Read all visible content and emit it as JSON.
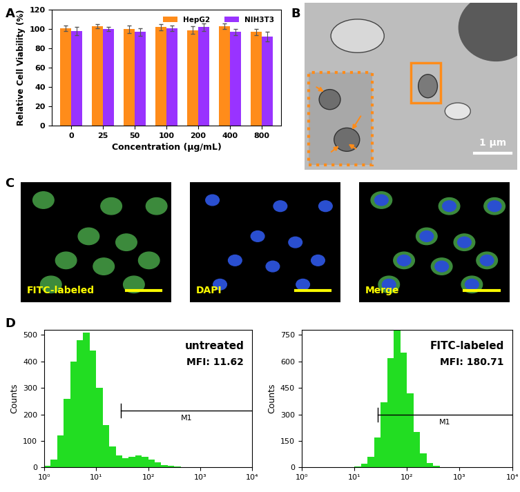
{
  "chart_data": [
    {
      "type": "bar",
      "title": "A",
      "categories": [
        "0",
        "25",
        "50",
        "100",
        "200",
        "400",
        "800"
      ],
      "x_label": "Concentration (μg/mL)",
      "y_label": "Relative Cell Viability (%)",
      "series": [
        {
          "name": "HepG2",
          "color": "#ff8c1a",
          "values": [
            101,
            103,
            100,
            102,
            99,
            103,
            97
          ],
          "errors": [
            3,
            2,
            4,
            3,
            4,
            3,
            3
          ]
        },
        {
          "name": "NIH3T3",
          "color": "#9933ff",
          "values": [
            98,
            100,
            97,
            101,
            102,
            97,
            92
          ],
          "errors": [
            4,
            2,
            4,
            3,
            4,
            3,
            5
          ]
        }
      ],
      "ylim": [
        0,
        120
      ],
      "yticks": [
        0,
        20,
        40,
        60,
        80,
        100,
        120
      ],
      "legend": "upper right",
      "grid": false
    },
    {
      "type": "histogram",
      "title": "D",
      "y_label": "Counts",
      "log": "x",
      "color": "#22dd22",
      "bins": [
        1,
        1.334,
        1.778,
        2.371,
        3.162,
        4.217,
        5.623,
        7.499,
        10,
        13.34,
        17.78,
        23.71,
        31.62,
        42.17,
        56.23,
        74.99,
        100,
        133.4,
        177.8,
        237.1,
        316.2,
        421.7,
        562.3,
        749.9,
        1000,
        1334,
        1778,
        2371,
        3162,
        4217,
        5623,
        7499,
        10000
      ],
      "counts": [
        5,
        30,
        120,
        260,
        400,
        480,
        510,
        440,
        300,
        160,
        80,
        45,
        35,
        40,
        45,
        40,
        30,
        18,
        10,
        5,
        3,
        2,
        1,
        0,
        0,
        0,
        0,
        0,
        0,
        0,
        0,
        0
      ],
      "xlim": [
        1,
        10000
      ],
      "xticks": [
        {
          "value": 1,
          "label": "10⁰"
        },
        {
          "value": 10,
          "label": "10¹"
        },
        {
          "value": 100,
          "label": "10²"
        },
        {
          "value": 1000,
          "label": "10³"
        },
        {
          "value": 10000,
          "label": "10⁴"
        }
      ],
      "ylim": [
        0,
        520
      ],
      "yticks": [
        0,
        100,
        200,
        300,
        400,
        500
      ],
      "annotations": [
        "untreated",
        "MFI: 11.62"
      ],
      "gate": {
        "label": "M1",
        "x": [
          30,
          10000
        ],
        "y": 215
      }
    },
    {
      "type": "histogram",
      "y_label": "Counts",
      "log": "x",
      "color": "#22dd22",
      "bins": [
        1,
        1.334,
        1.778,
        2.371,
        3.162,
        4.217,
        5.623,
        7.499,
        10,
        13.34,
        17.78,
        23.71,
        31.62,
        42.17,
        56.23,
        74.99,
        100,
        133.4,
        177.8,
        237.1,
        316.2,
        421.7,
        562.3,
        749.9,
        1000,
        1334,
        1778,
        2371,
        3162,
        4217,
        5623,
        7499,
        10000
      ],
      "counts": [
        0,
        0,
        0,
        0,
        0,
        0,
        1,
        2,
        5,
        20,
        60,
        170,
        370,
        620,
        780,
        650,
        420,
        200,
        80,
        25,
        8,
        3,
        1,
        0,
        0,
        0,
        0,
        0,
        0,
        0,
        0,
        0
      ],
      "xlim": [
        1,
        10000
      ],
      "xticks": [
        {
          "value": 1,
          "label": "10⁰"
        },
        {
          "value": 10,
          "label": "10¹"
        },
        {
          "value": 100,
          "label": "10²"
        },
        {
          "value": 1000,
          "label": "10³"
        },
        {
          "value": 10000,
          "label": "10⁴"
        }
      ],
      "ylim": [
        0,
        780
      ],
      "yticks": [
        0,
        150,
        300,
        450,
        600,
        750
      ],
      "annotations": [
        "FITC-labeled",
        "MFI: 180.71"
      ],
      "gate": {
        "label": "M1",
        "x": [
          28,
          10000
        ],
        "y": 300
      }
    }
  ],
  "images": [
    {
      "panel": "B",
      "scale_bar": "1 μm"
    },
    {
      "panel": "C",
      "labels": [
        "FITC-labeled",
        "DAPI",
        "Merge"
      ]
    }
  ]
}
